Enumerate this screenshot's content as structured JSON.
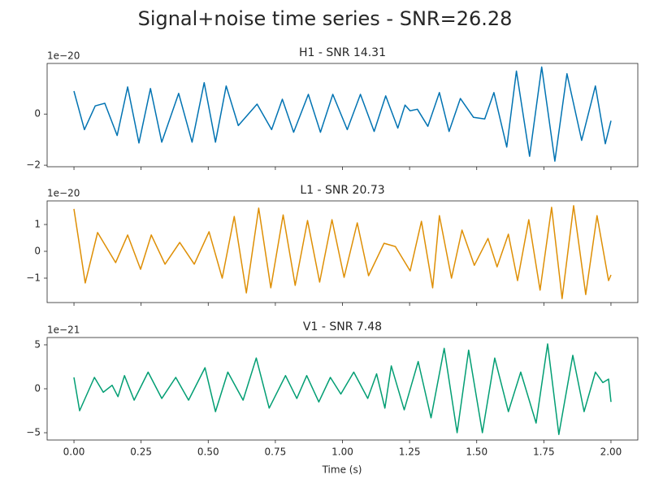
{
  "chart_data": {
    "type": "line",
    "title": "Signal+noise time series - SNR=26.28",
    "xlabel": "Time (s)",
    "xlim": [
      -0.1,
      2.1
    ],
    "xticks": [
      {
        "value": 0,
        "label": "0.00"
      },
      {
        "value": 0.25,
        "label": "0.25"
      },
      {
        "value": 0.5,
        "label": "0.50"
      },
      {
        "value": 0.75,
        "label": "0.75"
      },
      {
        "value": 1,
        "label": "1.00"
      },
      {
        "value": 1.25,
        "label": "1.25"
      },
      {
        "value": 1.5,
        "label": "1.50"
      },
      {
        "value": 1.75,
        "label": "1.75"
      },
      {
        "value": 2,
        "label": "2.00"
      }
    ],
    "subplots": [
      {
        "title": "H1 - SNR 14.31",
        "offset_label": "1e−20",
        "color": "#0173b2",
        "ylim": [
          -2.06,
          1.98
        ],
        "yticks": [
          {
            "value": -2,
            "label": "−2"
          },
          0
        ],
        "x": [
          0,
          0.039,
          0.079,
          0.115,
          0.161,
          0.2,
          0.242,
          0.285,
          0.327,
          0.39,
          0.44,
          0.485,
          0.527,
          0.567,
          0.612,
          0.682,
          0.736,
          0.776,
          0.818,
          0.873,
          0.918,
          0.964,
          1.018,
          1.067,
          1.118,
          1.161,
          1.206,
          1.233,
          1.252,
          1.279,
          1.318,
          1.361,
          1.397,
          1.439,
          1.488,
          1.53,
          1.564,
          1.612,
          1.648,
          1.697,
          1.742,
          1.791,
          1.836,
          1.891,
          1.942,
          1.979,
          2.0
        ],
        "values": [
          0.9,
          -0.61,
          0.32,
          0.42,
          -0.84,
          1.06,
          -1.13,
          1.0,
          -1.1,
          0.81,
          -1.1,
          1.23,
          -1.1,
          1.1,
          -0.45,
          0.39,
          -0.61,
          0.58,
          -0.71,
          0.77,
          -0.71,
          0.77,
          -0.61,
          0.77,
          -0.68,
          0.71,
          -0.55,
          0.35,
          0.13,
          0.19,
          -0.48,
          0.84,
          -0.68,
          0.61,
          -0.13,
          -0.19,
          0.84,
          -1.29,
          1.68,
          -1.65,
          1.84,
          -1.84,
          1.58,
          -1.03,
          1.1,
          -1.16,
          -0.26
        ]
      },
      {
        "title": "L1 - SNR 20.73",
        "offset_label": "1e−20",
        "color": "#de8f05",
        "ylim": [
          -1.91,
          1.88
        ],
        "yticks": [
          {
            "value": -1,
            "label": "−1"
          },
          0,
          1
        ],
        "x": [
          0,
          0.042,
          0.088,
          0.155,
          0.2,
          0.248,
          0.288,
          0.339,
          0.394,
          0.448,
          0.503,
          0.552,
          0.597,
          0.642,
          0.688,
          0.733,
          0.779,
          0.824,
          0.87,
          0.915,
          0.961,
          1.006,
          1.055,
          1.097,
          1.155,
          1.197,
          1.252,
          1.294,
          1.336,
          1.361,
          1.406,
          1.445,
          1.491,
          1.542,
          1.576,
          1.618,
          1.652,
          1.694,
          1.736,
          1.779,
          1.818,
          1.861,
          1.906,
          1.948,
          1.991,
          2.0
        ],
        "values": [
          1.58,
          -1.18,
          0.7,
          -0.42,
          0.61,
          -0.67,
          0.61,
          -0.48,
          0.33,
          -0.48,
          0.73,
          -1.0,
          1.3,
          -1.55,
          1.61,
          -1.36,
          1.36,
          -1.27,
          1.15,
          -1.15,
          1.18,
          -0.97,
          1.06,
          -0.91,
          0.3,
          0.18,
          -0.73,
          1.12,
          -1.36,
          1.33,
          -1.0,
          0.79,
          -0.52,
          0.48,
          -0.58,
          0.64,
          -1.09,
          1.18,
          -1.45,
          1.64,
          -1.76,
          1.7,
          -1.61,
          1.33,
          -1.09,
          -0.88
        ]
      },
      {
        "title": "V1 - SNR 7.48",
        "offset_label": "1e−21",
        "color": "#029e73",
        "ylim": [
          -5.83,
          5.83
        ],
        "yticks": [
          {
            "value": -5,
            "label": "−5"
          },
          0,
          5
        ],
        "x": [
          0,
          0.021,
          0.076,
          0.109,
          0.142,
          0.164,
          0.188,
          0.224,
          0.276,
          0.327,
          0.379,
          0.427,
          0.488,
          0.527,
          0.573,
          0.63,
          0.679,
          0.727,
          0.788,
          0.83,
          0.867,
          0.912,
          0.955,
          0.994,
          1.042,
          1.094,
          1.127,
          1.158,
          1.182,
          1.23,
          1.282,
          1.33,
          1.379,
          1.427,
          1.47,
          1.521,
          1.567,
          1.618,
          1.664,
          1.721,
          1.764,
          1.806,
          1.858,
          1.9,
          1.942,
          1.97,
          1.991,
          2.0
        ],
        "values": [
          1.3,
          -2.5,
          1.3,
          -0.4,
          0.4,
          -0.9,
          1.5,
          -1.3,
          1.9,
          -1.1,
          1.3,
          -1.3,
          2.4,
          -2.6,
          1.9,
          -1.3,
          3.5,
          -2.2,
          1.5,
          -1.1,
          1.5,
          -1.5,
          1.3,
          -0.6,
          1.9,
          -1.1,
          1.7,
          -2.2,
          2.6,
          -2.4,
          3.1,
          -3.3,
          4.6,
          -5.0,
          4.4,
          -5.0,
          3.5,
          -2.6,
          1.9,
          -3.9,
          5.1,
          -5.2,
          3.8,
          -2.6,
          1.9,
          0.7,
          1.1,
          -1.5
        ]
      }
    ]
  }
}
